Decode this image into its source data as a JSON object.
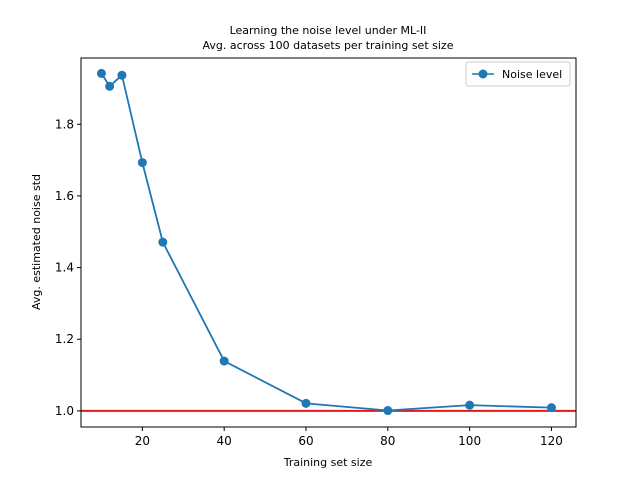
{
  "chart_data": {
    "type": "line",
    "title": "Learning the noise level under ML-II",
    "subtitle": "Avg. across 100 datasets per training set size",
    "xlabel": "Training set size",
    "ylabel": "Avg. estimated noise std",
    "xlim": [
      5,
      126
    ],
    "ylim": [
      0.955,
      1.985
    ],
    "xticks": [
      20,
      40,
      60,
      80,
      100,
      120
    ],
    "yticks": [
      1.0,
      1.2,
      1.4,
      1.6,
      1.8
    ],
    "legend": {
      "placement": "top-right"
    },
    "grid": false,
    "series": [
      {
        "name": "Noise level",
        "color": "#1f77b4",
        "x": [
          10,
          12,
          15,
          20,
          25,
          40,
          60,
          80,
          100,
          120
        ],
        "y": [
          1.942,
          1.906,
          1.937,
          1.693,
          1.471,
          1.139,
          1.021,
          1.001,
          1.016,
          1.009
        ]
      }
    ],
    "reference_line": {
      "y": 1.0,
      "color": "#e31a1c"
    }
  }
}
